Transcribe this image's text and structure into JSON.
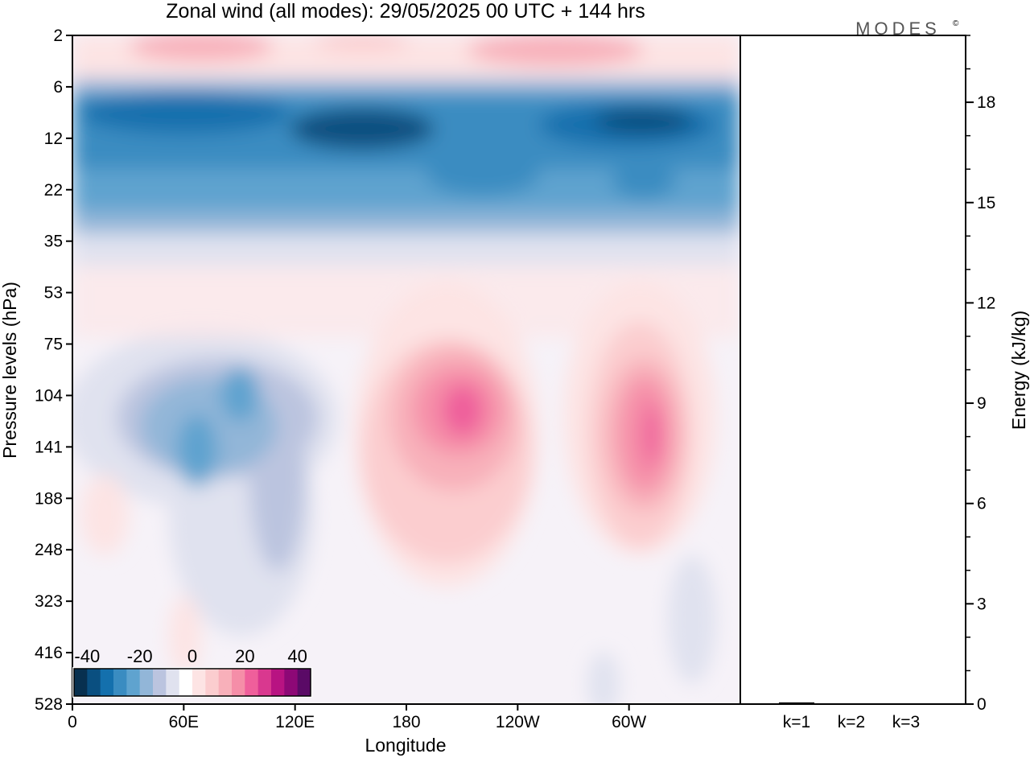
{
  "chart_data": [
    {
      "type": "heatmap",
      "title": "Zonal wind (all modes):  29/05/2025  00 UTC  + 144 hrs",
      "xlabel": "Longitude",
      "ylabel": "Pressure levels (hPa)",
      "x_ticks": [
        "0",
        "60E",
        "120E",
        "180",
        "120W",
        "60W"
      ],
      "x_tick_degrees": [
        0,
        60,
        120,
        180,
        240,
        300
      ],
      "xlim": [
        0,
        360
      ],
      "y_ticks": [
        "2",
        "6",
        "12",
        "22",
        "35",
        "53",
        "75",
        "104",
        "141",
        "188",
        "248",
        "323",
        "416",
        "528"
      ],
      "y_scale": "level-index (pressure decreasing upward)",
      "colorbar": {
        "tick_labels": [
          "-40",
          "-20",
          "0",
          "20",
          "40"
        ],
        "tick_values": [
          -40,
          -20,
          0,
          20,
          40
        ],
        "range": [
          -45,
          45
        ],
        "step": 5,
        "placement": "bottom-left inside plot",
        "colors": [
          "#08304f",
          "#0a4f80",
          "#1470ad",
          "#3a8cc1",
          "#5fa3cf",
          "#92b6d8",
          "#bbc4df",
          "#e0e2ef",
          "#ffffff",
          "#fde4e4",
          "#fbcdcf",
          "#f8b0ba",
          "#f58ea8",
          "#ef5f9b",
          "#d9388f",
          "#b81382",
          "#8d0876",
          "#5a0a66"
        ]
      },
      "features": [
        {
          "description": "easterly jet",
          "lon": [
            0,
            360
          ],
          "level": "9",
          "value": -35
        },
        {
          "description": "easterly core",
          "lon": [
            90,
            130
          ],
          "level": "10",
          "value": -40
        },
        {
          "description": "westerly band",
          "lon": [
            40,
            240
          ],
          "level": "2-4",
          "value": 10
        },
        {
          "description": "easterly max",
          "lon": 90,
          "level": "110",
          "value": -25
        },
        {
          "description": "easterly max",
          "lon": 65,
          "level": "140",
          "value": -20
        },
        {
          "description": "westerly max",
          "lon": 208,
          "level": "130",
          "value": 25
        },
        {
          "description": "westerly max",
          "lon": 320,
          "level": "140",
          "value": 25
        }
      ]
    },
    {
      "type": "bar",
      "categories": [
        "k=1",
        "k=2",
        "k=3"
      ],
      "values": [
        0.05,
        0.02,
        0.02
      ],
      "ylabel": "Energy (kJ/kg)",
      "y_ticks": [
        "0",
        "3",
        "6",
        "9",
        "12",
        "15",
        "18"
      ],
      "ylim": [
        0,
        20
      ],
      "y_axis_side": "right"
    }
  ],
  "brand": "MODES",
  "brand_mark": "©"
}
